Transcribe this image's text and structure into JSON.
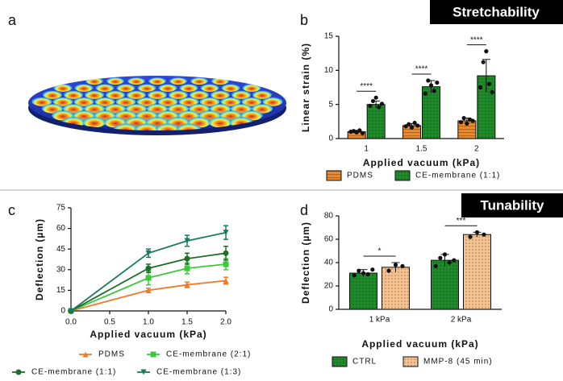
{
  "panel_labels": [
    "a",
    "b",
    "c",
    "d"
  ],
  "banners": [
    "Stretchability",
    "Tunability"
  ],
  "chart_data": [
    {
      "type": "bar",
      "xlabel": "Applied vacuum (kPa)",
      "ylabel": "Linear strain (%)",
      "categories": [
        "1",
        "1.5",
        "2"
      ],
      "ylim": [
        0,
        15
      ],
      "yticks": [
        0,
        5,
        10,
        15
      ],
      "series": [
        {
          "name": "PDMS",
          "color": "#f0892a",
          "values": [
            1.0,
            1.9,
            2.6
          ],
          "errors": [
            0.2,
            0.3,
            0.4
          ],
          "points": [
            [
              1.0,
              1.1,
              0.9,
              1.2,
              0.8
            ],
            [
              1.8,
              2.1,
              1.6,
              2.3,
              1.9
            ],
            [
              2.4,
              3.0,
              2.2,
              2.8,
              2.6
            ]
          ]
        },
        {
          "name": "CE-membrane (1:1)",
          "color": "#1f8a2a",
          "values": [
            5.0,
            7.6,
            9.2
          ],
          "errors": [
            0.5,
            0.9,
            2.4
          ],
          "points": [
            [
              4.8,
              5.5,
              6.0,
              4.6,
              5.1
            ],
            [
              6.6,
              8.5,
              7.8,
              7.0,
              8.2
            ],
            [
              7.5,
              11.2,
              12.8,
              8.0,
              6.8
            ]
          ]
        }
      ],
      "annotations": [
        "****",
        "****",
        "****"
      ]
    },
    {
      "type": "line",
      "xlabel": "Applied vacuum (kPa)",
      "ylabel": "Deflection (µm)",
      "x": [
        0,
        1,
        1.5,
        2
      ],
      "xlim": [
        0,
        2
      ],
      "xticks": [
        {
          "value": 0,
          "label": "0.0"
        },
        {
          "value": 0.5,
          "label": "0.5"
        },
        {
          "value": 1,
          "label": "1.0"
        },
        {
          "value": 1.5,
          "label": "1.5"
        },
        {
          "value": 2,
          "label": "2.0"
        }
      ],
      "ylim": [
        0,
        75
      ],
      "yticks": [
        0,
        15,
        30,
        45,
        60,
        75
      ],
      "series": [
        {
          "name": "PDMS",
          "color": "#f07a28",
          "marker": "triangle-up",
          "values": [
            0,
            15,
            19,
            22
          ],
          "errors": [
            0,
            1.5,
            2,
            2.5
          ]
        },
        {
          "name": "CE-membrane (2:1)",
          "color": "#3cc83c",
          "marker": "square",
          "values": [
            0,
            24,
            31,
            34
          ],
          "errors": [
            0,
            5,
            4,
            4
          ]
        },
        {
          "name": "CE-membrane (1:1)",
          "color": "#1e6e28",
          "marker": "circle",
          "values": [
            0,
            31,
            38,
            42
          ],
          "errors": [
            0,
            3,
            4,
            5
          ]
        },
        {
          "name": "CE-membrane (1:3)",
          "color": "#1a7a5e",
          "marker": "triangle-down",
          "values": [
            0,
            42,
            51,
            57
          ],
          "errors": [
            0,
            3,
            4,
            5
          ]
        }
      ]
    },
    {
      "type": "bar",
      "xlabel": "Applied vacuum (kPa)",
      "ylabel": "Deflection (µm)",
      "categories": [
        "1 kPa",
        "2 kPa"
      ],
      "ylim": [
        0,
        80
      ],
      "yticks": [
        0,
        20,
        40,
        60,
        80
      ],
      "series": [
        {
          "name": "CTRL",
          "color": "#1f8a2a",
          "values": [
            31,
            42
          ],
          "errors": [
            3,
            5
          ],
          "points": [
            [
              29,
              33,
              31,
              30,
              34
            ],
            [
              37,
              44,
              47,
              40,
              42
            ]
          ]
        },
        {
          "name": "MMP-8 (45 min)",
          "color": "#f5c18e",
          "values": [
            36,
            64
          ],
          "errors": [
            4,
            2
          ],
          "points": [
            [
              33,
              38,
              37
            ],
            [
              62,
              66,
              64
            ]
          ]
        }
      ],
      "annotations": [
        "*",
        "***"
      ]
    }
  ]
}
